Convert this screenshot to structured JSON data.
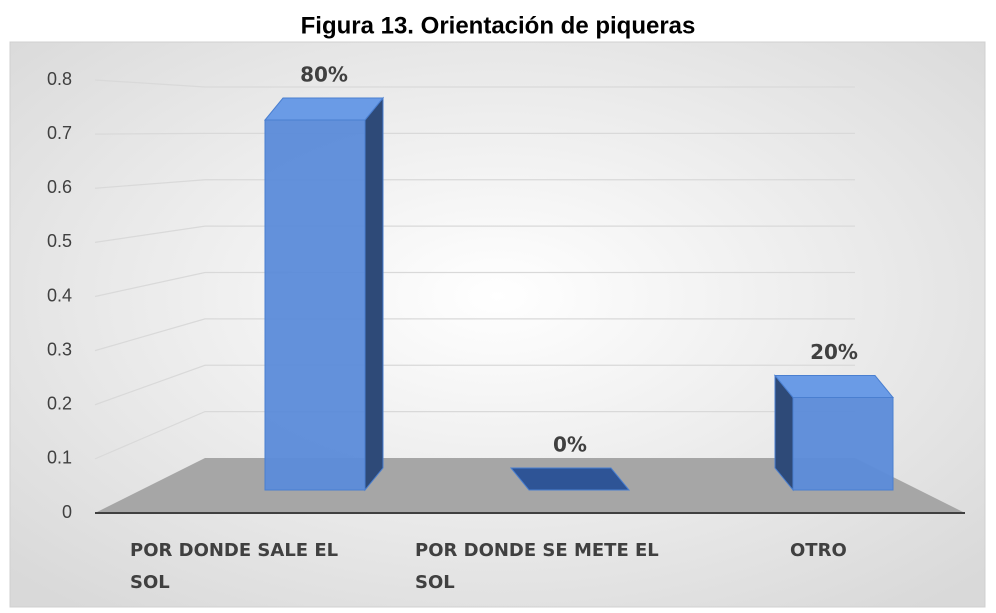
{
  "chart_data": {
    "type": "bar3d",
    "title": "Figura 13. Orientación de piqueras",
    "categories": [
      "POR DONDE SALE EL SOL",
      "POR DONDE SE METE EL SOL",
      "OTRO"
    ],
    "values": [
      0.8,
      0,
      0.2
    ],
    "value_labels": [
      "80%",
      "0%",
      "20%"
    ],
    "color": "#5b8bd9",
    "ylim": [
      0,
      0.8
    ],
    "yticks": [
      0,
      0.1,
      0.2,
      0.3,
      0.4,
      0.5,
      0.6,
      0.7,
      0.8
    ],
    "grid": true
  }
}
